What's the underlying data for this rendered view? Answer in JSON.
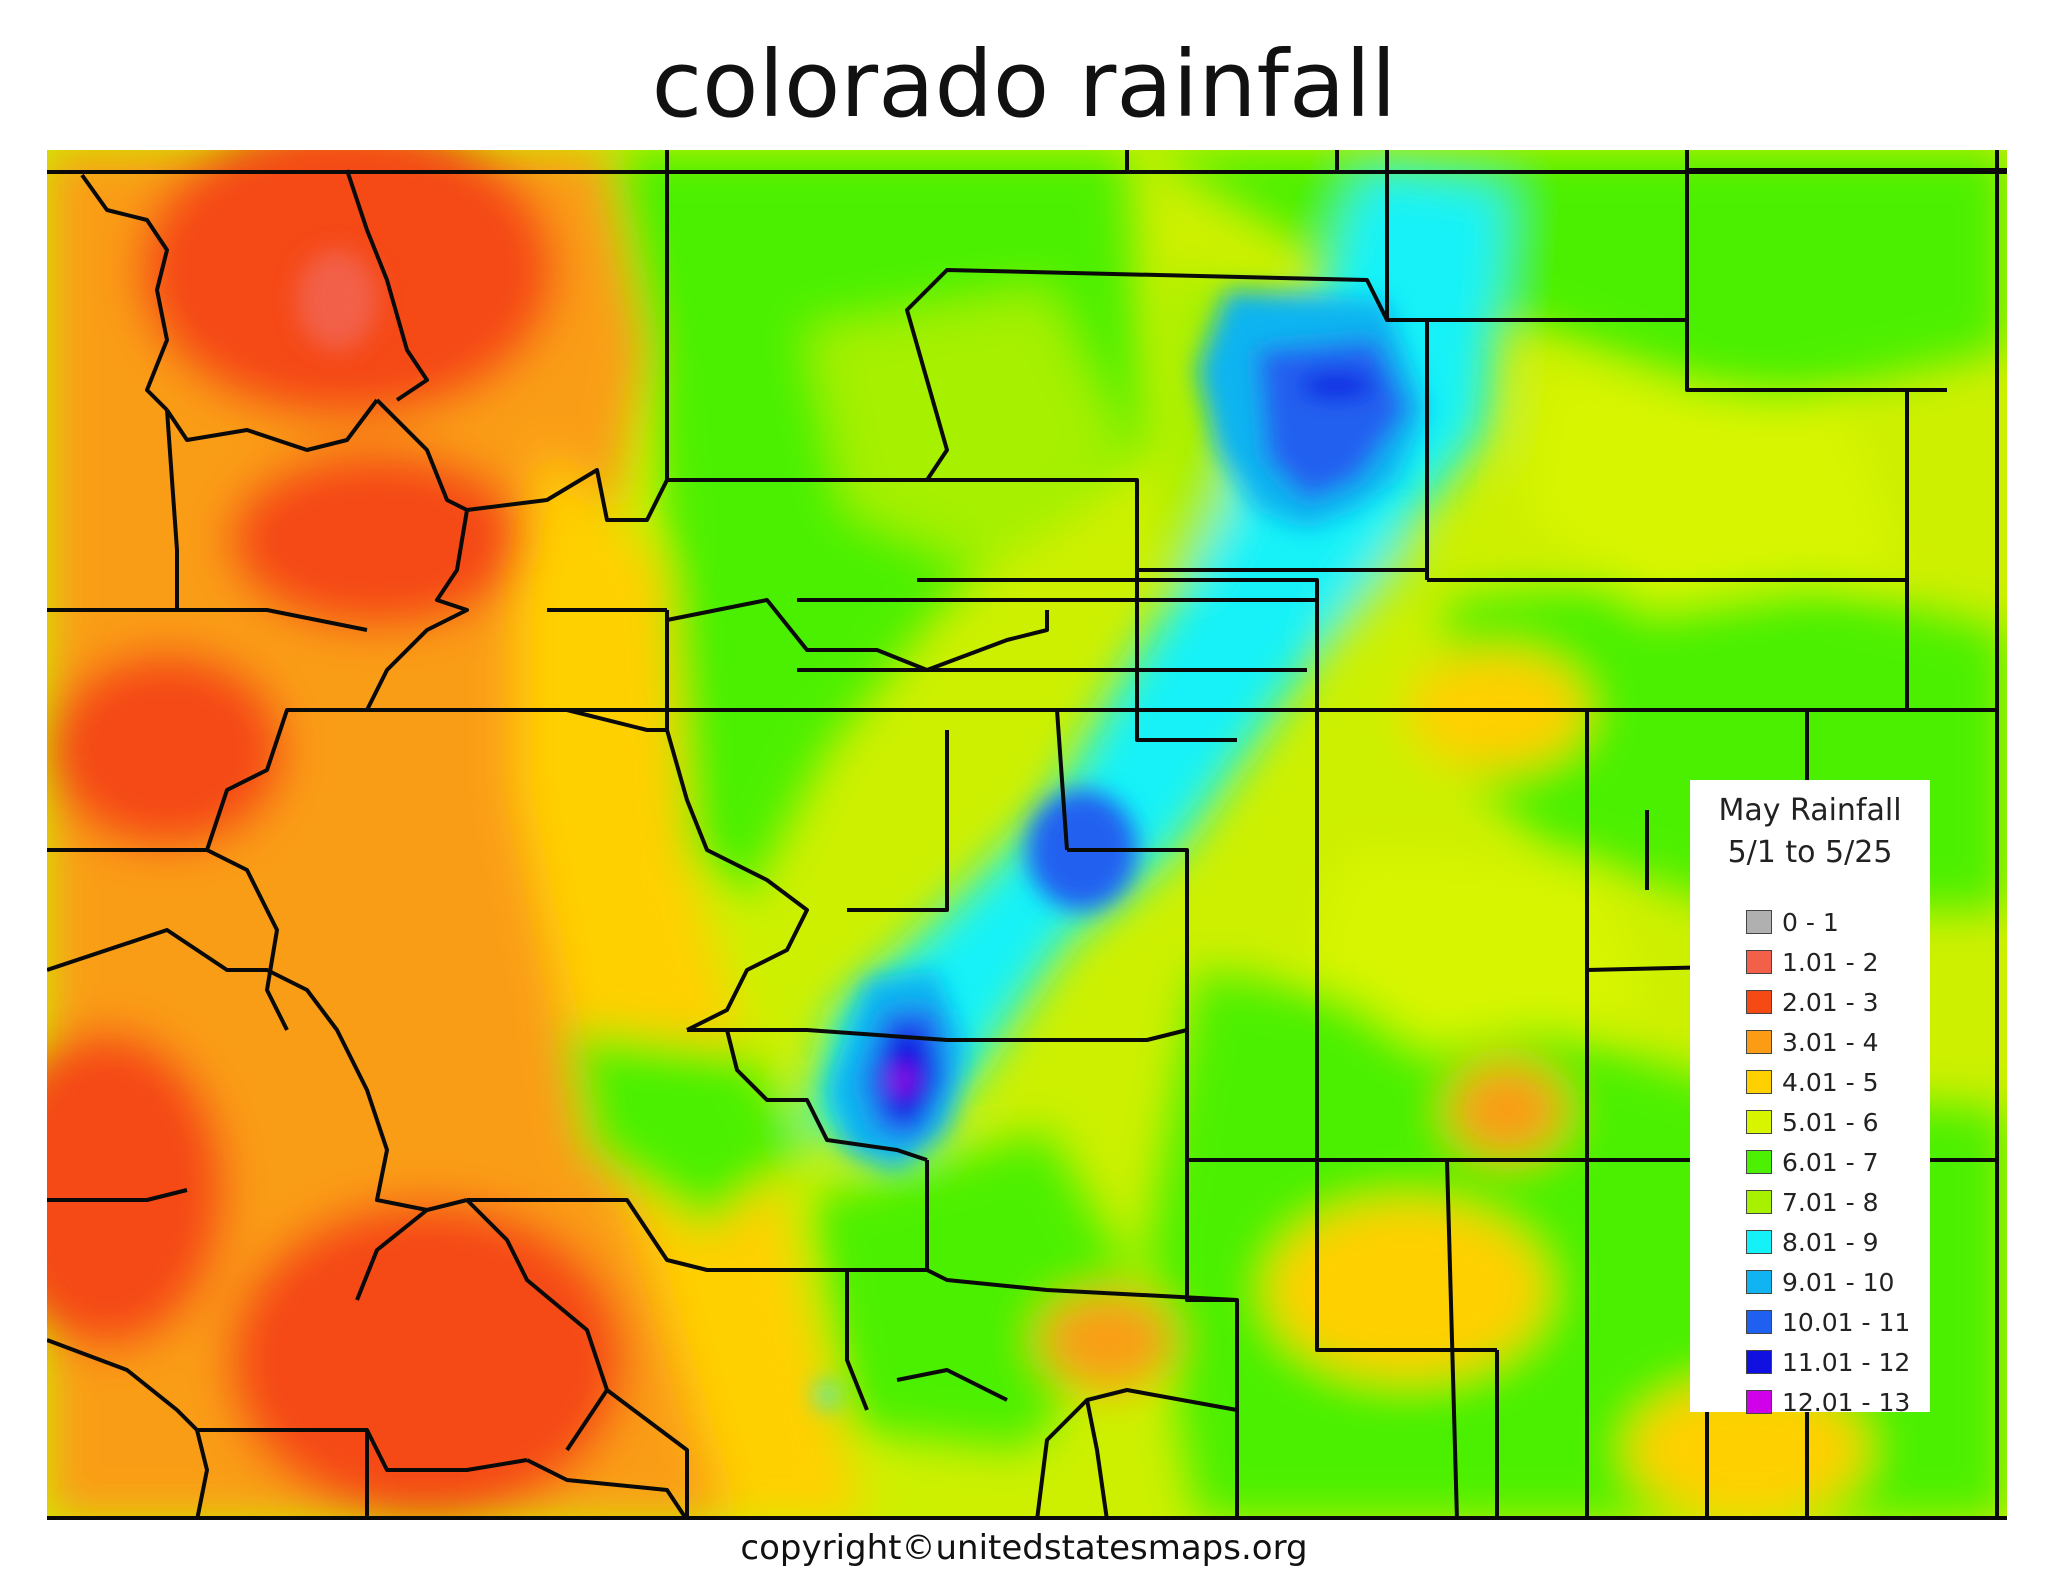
{
  "title": "colorado rainfall",
  "copyright": "copyright©unitedstatesmaps.org",
  "legend": {
    "title_line1": "May Rainfall",
    "title_line2": "5/1 to 5/25",
    "items": [
      {
        "label": "0 - 1",
        "color": "#b0b0b0"
      },
      {
        "label": "1.01 - 2",
        "color": "#f2604a"
      },
      {
        "label": "2.01 - 3",
        "color": "#f54a14"
      },
      {
        "label": "3.01 - 4",
        "color": "#fa9d14"
      },
      {
        "label": "4.01 - 5",
        "color": "#ffd000"
      },
      {
        "label": "5.01 - 6",
        "color": "#d8f500"
      },
      {
        "label": "6.01 - 7",
        "color": "#4cf000"
      },
      {
        "label": "7.01 - 8",
        "color": "#a6f000"
      },
      {
        "label": "8.01 - 9",
        "color": "#14f2f8"
      },
      {
        "label": "9.01 - 10",
        "color": "#10b4f0"
      },
      {
        "label": "10.01 - 11",
        "color": "#2060f0"
      },
      {
        "label": "11.01 - 12",
        "color": "#1010e0"
      },
      {
        "label": "12.01 - 13",
        "color": "#d000e8"
      }
    ]
  }
}
